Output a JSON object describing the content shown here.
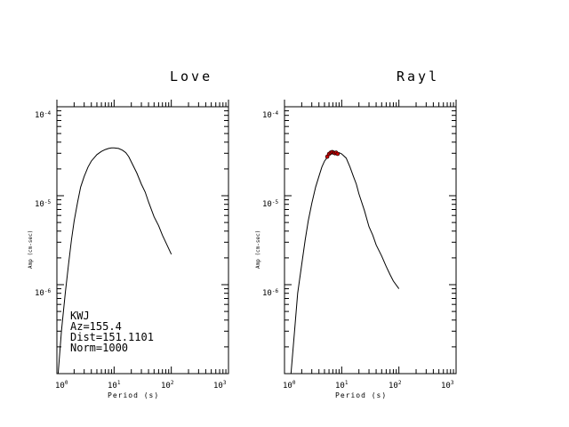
{
  "chart_data": [
    {
      "type": "line",
      "title": "Love",
      "xlabel": "Period (s)",
      "ylabel": "Amp (cm-sec)",
      "x_scale": "log",
      "y_scale": "log",
      "xlim": [
        1,
        1000
      ],
      "ylim": [
        1e-07,
        0.0001
      ],
      "x_ticks": [
        {
          "base": "10",
          "exp": "0"
        },
        {
          "base": "10",
          "exp": "1"
        },
        {
          "base": "10",
          "exp": "2"
        },
        {
          "base": "10",
          "exp": "3"
        }
      ],
      "y_ticks": [
        {
          "base": "10",
          "exp": "-4",
          "value": 0.0001
        },
        {
          "base": "10",
          "exp": "-5",
          "value": 1e-05
        },
        {
          "base": "10",
          "exp": "-6",
          "value": 1e-06
        }
      ],
      "annotations": [
        "KWJ",
        "Az=155.4",
        "Dist=151.1101",
        "Norm=1000"
      ],
      "series": [
        {
          "x": [
            1.05,
            1.2,
            1.4,
            1.6,
            1.8,
            2.0,
            2.3,
            2.6,
            3.0,
            3.5,
            4.0,
            5.0,
            6.0,
            7.0,
            8.0,
            9.0,
            10.0,
            12.0,
            14.0,
            16.0,
            18.0,
            20.0,
            25.0,
            30.0,
            35.0,
            40.0,
            50.0,
            60.0,
            70.0,
            80.0,
            100.0
          ],
          "y": [
            1e-07,
            3e-07,
            8e-07,
            1.7e-06,
            3.2e-06,
            5.2e-06,
            8.5e-06,
            1.25e-05,
            1.65e-05,
            2.1e-05,
            2.45e-05,
            2.9e-05,
            3.15e-05,
            3.3e-05,
            3.4e-05,
            3.45e-05,
            3.45e-05,
            3.4e-05,
            3.25e-05,
            3.05e-05,
            2.75e-05,
            2.4e-05,
            1.8e-05,
            1.35e-05,
            1.1e-05,
            8.5e-06,
            5.8e-06,
            4.6e-06,
            3.6e-06,
            3e-06,
            2.2e-06
          ]
        }
      ]
    },
    {
      "type": "line",
      "title": "Rayl",
      "xlabel": "Period (s)",
      "ylabel": "Amp (cm-sec)",
      "x_scale": "log",
      "y_scale": "log",
      "xlim": [
        1,
        1000
      ],
      "ylim": [
        1e-07,
        0.0001
      ],
      "x_ticks": [
        {
          "base": "10",
          "exp": "0"
        },
        {
          "base": "10",
          "exp": "1"
        },
        {
          "base": "10",
          "exp": "2"
        },
        {
          "base": "10",
          "exp": "3"
        }
      ],
      "y_ticks": [
        {
          "base": "10",
          "exp": "-4",
          "value": 0.0001
        },
        {
          "base": "10",
          "exp": "-5",
          "value": 1e-05
        },
        {
          "base": "10",
          "exp": "-6",
          "value": 1e-06
        }
      ],
      "series": [
        {
          "x": [
            1.3,
            1.5,
            1.7,
            2.0,
            2.3,
            2.6,
            3.0,
            3.5,
            4.0,
            4.5,
            5.0,
            5.5,
            6.0,
            7.0,
            8.0,
            9.0,
            10.0,
            12.0,
            14.0,
            16.0,
            18.0,
            20.0,
            25.0,
            30.0,
            35.0,
            40.0,
            50.0,
            60.0,
            70.0,
            80.0,
            100.0
          ],
          "y": [
            1e-07,
            3e-07,
            8e-07,
            1.7e-06,
            3.2e-06,
            5.2e-06,
            8.2e-06,
            1.25e-05,
            1.65e-05,
            2.1e-05,
            2.45e-05,
            2.65e-05,
            2.85e-05,
            3e-05,
            3.05e-05,
            3.05e-05,
            2.95e-05,
            2.65e-05,
            2.1e-05,
            1.65e-05,
            1.35e-05,
            1.05e-05,
            6.8e-06,
            4.5e-06,
            3.6e-06,
            2.8e-06,
            2.1e-06,
            1.6e-06,
            1.3e-06,
            1.1e-06,
            9e-07
          ]
        }
      ],
      "observed": {
        "color": "#cc0000",
        "x": [
          5.6,
          6.0,
          6.4,
          6.8,
          7.2,
          7.6,
          8.0,
          8.5
        ],
        "y": [
          2.75e-05,
          2.95e-05,
          3.05e-05,
          3.1e-05,
          3.05e-05,
          3e-05,
          3.05e-05,
          2.95e-05
        ]
      }
    }
  ]
}
